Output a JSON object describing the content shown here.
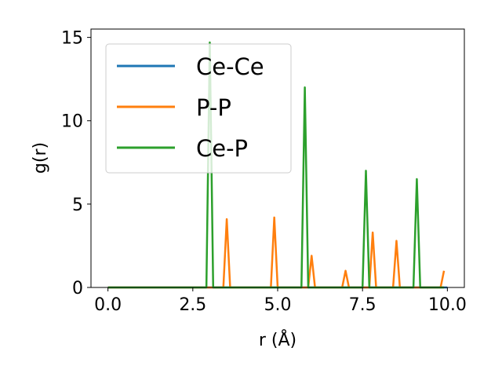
{
  "chart_data": {
    "type": "line",
    "title": "",
    "xlabel": "r (Å)",
    "ylabel": "g(r)",
    "xlim": [
      -0.5,
      10.5
    ],
    "ylim": [
      0,
      15.5
    ],
    "xticks": [
      "0.0",
      "2.5",
      "5.0",
      "7.5",
      "10.0"
    ],
    "xtick_values": [
      0,
      2.5,
      5,
      7.5,
      10
    ],
    "yticks": [
      "0",
      "5",
      "10",
      "15"
    ],
    "ytick_values": [
      0,
      5,
      10,
      15
    ],
    "grid": false,
    "legend_position": "top-left",
    "series": [
      {
        "name": "Ce-Ce",
        "color": "#1f77b4",
        "points": [
          [
            0,
            0
          ],
          [
            10,
            0
          ]
        ]
      },
      {
        "name": "P-P",
        "color": "#ff7f0e",
        "points": [
          [
            0,
            0
          ],
          [
            3.4,
            0
          ],
          [
            3.5,
            4.1
          ],
          [
            3.6,
            0
          ],
          [
            4.8,
            0
          ],
          [
            4.9,
            4.2
          ],
          [
            5.0,
            0
          ],
          [
            5.9,
            0
          ],
          [
            6.0,
            1.9
          ],
          [
            6.1,
            0
          ],
          [
            6.9,
            0
          ],
          [
            7.0,
            1.0
          ],
          [
            7.1,
            0
          ],
          [
            7.7,
            0
          ],
          [
            7.8,
            3.3
          ],
          [
            7.9,
            0
          ],
          [
            8.4,
            0
          ],
          [
            8.5,
            2.8
          ],
          [
            8.6,
            0
          ],
          [
            9.8,
            0
          ],
          [
            9.9,
            1.0
          ]
        ]
      },
      {
        "name": "Ce-P",
        "color": "#2ca02c",
        "points": [
          [
            0,
            0
          ],
          [
            2.9,
            0
          ],
          [
            3.0,
            14.7
          ],
          [
            3.1,
            0
          ],
          [
            5.7,
            0
          ],
          [
            5.8,
            12.0
          ],
          [
            5.9,
            0
          ],
          [
            7.5,
            0
          ],
          [
            7.6,
            7.0
          ],
          [
            7.7,
            0
          ],
          [
            9.0,
            0
          ],
          [
            9.1,
            6.5
          ],
          [
            9.2,
            0
          ],
          [
            9.9,
            0
          ]
        ]
      }
    ]
  }
}
